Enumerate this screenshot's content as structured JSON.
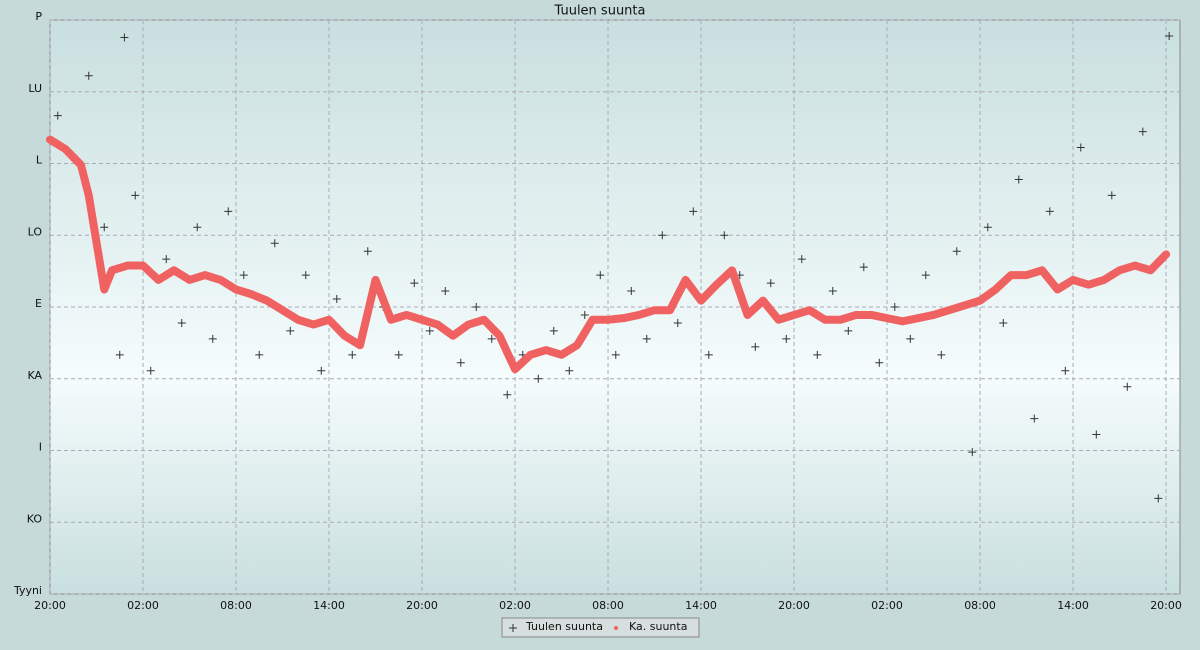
{
  "chart_data": {
    "type": "scatter",
    "title": "Tuulen suunta",
    "xlim": [
      0,
      72.9
    ],
    "xticks": [
      {
        "value": 0,
        "label": "20:00"
      },
      {
        "value": 6,
        "label": "02:00"
      },
      {
        "value": 12,
        "label": "08:00"
      },
      {
        "value": 18,
        "label": "14:00"
      },
      {
        "value": 24,
        "label": "20:00"
      },
      {
        "value": 30,
        "label": "02:00"
      },
      {
        "value": 36,
        "label": "08:00"
      },
      {
        "value": 42,
        "label": "14:00"
      },
      {
        "value": 48,
        "label": "20:00"
      },
      {
        "value": 54,
        "label": "02:00"
      },
      {
        "value": 60,
        "label": "08:00"
      },
      {
        "value": 66,
        "label": "14:00"
      },
      {
        "value": 72,
        "label": "20:00"
      }
    ],
    "ylim": [
      0,
      360
    ],
    "yticks": [
      {
        "value": 0,
        "label": "Tyyni"
      },
      {
        "value": 45,
        "label": "KO"
      },
      {
        "value": 90,
        "label": "I"
      },
      {
        "value": 135,
        "label": "KA"
      },
      {
        "value": 180,
        "label": "E"
      },
      {
        "value": 225,
        "label": "LO"
      },
      {
        "value": 270,
        "label": "L"
      },
      {
        "value": 315,
        "label": "LU"
      },
      {
        "value": 360,
        "label": "P"
      }
    ],
    "grid": true,
    "legend": "bottom",
    "series": [
      {
        "name": "Tuulen suunta",
        "color": "#333333",
        "marker": "plus",
        "x": [
          0.5,
          1.5,
          2.5,
          3.5,
          4.5,
          4.8,
          5.5,
          6.5,
          7.5,
          8.5,
          9.5,
          10.5,
          11.5,
          12.5,
          13.5,
          14.5,
          15.5,
          16.5,
          17.5,
          18.5,
          19.5,
          20.5,
          21.5,
          22.5,
          23.5,
          24.5,
          25.5,
          26.5,
          27.5,
          28.5,
          29.5,
          30.5,
          31.5,
          32.5,
          33.5,
          34.5,
          35.5,
          36.5,
          37.5,
          38.5,
          39.5,
          40.5,
          41.5,
          42.5,
          43.5,
          44.5,
          45.5,
          46.5,
          47.5,
          48.5,
          49.5,
          50.5,
          51.5,
          52.5,
          53.5,
          54.5,
          55.5,
          56.5,
          57.5,
          58.5,
          59.5,
          60.5,
          61.5,
          62.5,
          63.5,
          64.5,
          65.5,
          66.5,
          67.5,
          68.5,
          69.5,
          70.5,
          71.5,
          72.2
        ],
        "values": [
          300,
          275,
          325,
          230,
          150,
          349,
          250,
          140,
          210,
          170,
          230,
          160,
          240,
          200,
          150,
          220,
          165,
          200,
          140,
          185,
          150,
          215,
          180,
          150,
          195,
          165,
          190,
          145,
          180,
          160,
          125,
          150,
          135,
          165,
          140,
          175,
          200,
          150,
          190,
          160,
          225,
          170,
          240,
          150,
          225,
          200,
          155,
          195,
          160,
          210,
          150,
          190,
          165,
          205,
          145,
          180,
          160,
          200,
          150,
          215,
          89,
          230,
          170,
          260,
          110,
          240,
          140,
          280,
          100,
          250,
          130,
          290,
          60,
          350
        ]
      },
      {
        "name": "Ka. suunta",
        "color": "#f06262",
        "marker": "dot",
        "x": [
          0,
          1,
          2,
          2.5,
          3.5,
          4,
          5,
          6,
          7,
          8,
          9,
          10,
          11,
          12,
          13,
          14,
          15,
          16,
          17,
          18,
          19,
          20,
          21,
          22,
          23,
          24,
          25,
          26,
          27,
          28,
          29,
          30,
          31,
          32,
          33,
          34,
          35,
          36,
          37,
          38,
          39,
          40,
          41,
          42,
          43,
          44,
          45,
          46,
          47,
          48,
          49,
          50,
          51,
          52,
          53,
          54,
          55,
          56,
          57,
          58,
          59,
          60,
          61,
          62,
          63,
          64,
          65,
          66,
          67,
          68,
          69,
          70,
          71,
          72
        ],
        "values": [
          285,
          279,
          269,
          250,
          191,
          203,
          206,
          206,
          197,
          203,
          197,
          200,
          197,
          191,
          188,
          184,
          178,
          172,
          169,
          172,
          162,
          156,
          197,
          172,
          175,
          172,
          169,
          162,
          169,
          172,
          162,
          141,
          150,
          153,
          150,
          156,
          172,
          172,
          173,
          175,
          178,
          178,
          197,
          184,
          194,
          203,
          175,
          184,
          172,
          175,
          178,
          172,
          172,
          175,
          175,
          173,
          171,
          173,
          175,
          178,
          181,
          184,
          191,
          200,
          200,
          203,
          191,
          197,
          194,
          197,
          203,
          206,
          203,
          213
        ]
      }
    ]
  }
}
